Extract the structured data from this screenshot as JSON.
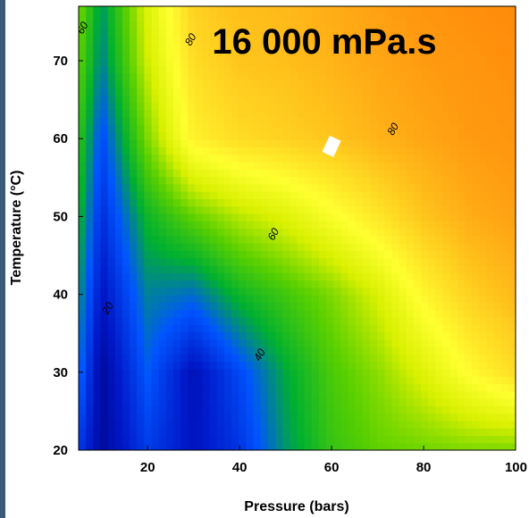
{
  "chart_data": {
    "type": "heatmap",
    "subtype": "filled-contour",
    "title": "16 000 mPa.s",
    "xlabel": "Pressure (bars)",
    "ylabel": "Temperature (°C)",
    "xlim": [
      5,
      100
    ],
    "ylim": [
      20,
      77
    ],
    "x_ticks": [
      20,
      40,
      60,
      80,
      100
    ],
    "y_ticks": [
      20,
      30,
      40,
      50,
      60,
      70
    ],
    "colorscale": [
      "#00007a",
      "#0018c8",
      "#0055ff",
      "#00b030",
      "#5ad000",
      "#d8f000",
      "#ffff30",
      "#ffd020",
      "#ff9a10",
      "#ff6a00"
    ],
    "value_range": [
      20,
      100
    ],
    "x": [
      5,
      10,
      20,
      30,
      40,
      50,
      60,
      70,
      80,
      90,
      100
    ],
    "y": [
      20,
      30,
      40,
      50,
      60,
      70,
      77
    ],
    "z": [
      [
        34,
        24,
        34,
        28,
        33,
        44,
        52,
        56,
        57,
        58,
        58
      ],
      [
        40,
        24,
        38,
        27,
        36,
        46,
        54,
        59,
        66,
        74,
        80
      ],
      [
        44,
        28,
        42,
        40,
        48,
        53,
        58,
        65,
        75,
        82,
        86
      ],
      [
        48,
        32,
        48,
        56,
        62,
        66,
        72,
        78,
        84,
        88,
        90
      ],
      [
        52,
        36,
        58,
        76,
        80,
        82,
        84,
        87,
        89,
        91,
        92
      ],
      [
        56,
        42,
        64,
        80,
        84,
        85,
        87,
        89,
        91,
        92,
        93
      ],
      [
        58,
        44,
        66,
        82,
        85,
        86,
        88,
        90,
        92,
        93,
        94
      ]
    ],
    "contour_labels": [
      {
        "text": "60",
        "x": 6.5,
        "y": 74
      },
      {
        "text": "80",
        "x": 30,
        "y": 72.5
      },
      {
        "text": "80",
        "x": 74,
        "y": 61
      },
      {
        "text": "60",
        "x": 48,
        "y": 47.5
      },
      {
        "text": "40",
        "x": 45,
        "y": 32
      },
      {
        "text": "20",
        "x": 12,
        "y": 38
      }
    ],
    "annotation_marker": {
      "x": 60,
      "y": 59
    }
  }
}
